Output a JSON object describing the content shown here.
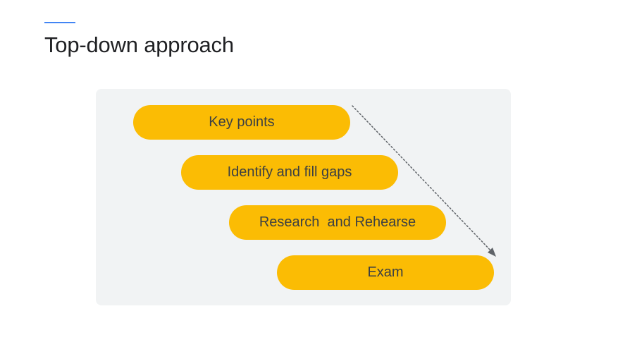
{
  "slide": {
    "title": "Top-down approach",
    "accent_color": "#4285f4"
  },
  "diagram": {
    "pill_color": "#fbbc04",
    "panel_color": "#f1f3f4",
    "steps": [
      {
        "label": "Key points"
      },
      {
        "label": "Identify and fill gaps"
      },
      {
        "label": "Research  and Rehearse"
      },
      {
        "label": "Exam"
      }
    ],
    "arrow": {
      "style": "dotted",
      "direction": "down-right"
    }
  }
}
